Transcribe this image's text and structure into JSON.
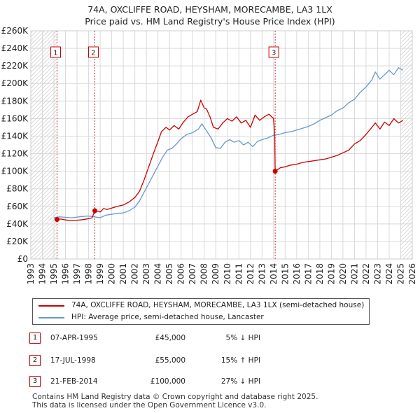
{
  "header": {
    "title_line1": "74A, OXCLIFFE ROAD, HEYSHAM, MORECAMBE, LA3 1LX",
    "title_line2": "Price paid vs. HM Land Registry's House Price Index (HPI)"
  },
  "colors": {
    "price_line": "#cc0000",
    "hpi_line": "#6699cc",
    "marker_border": "#cc0000",
    "vline": "#cc0000",
    "hatch": "#cccccc",
    "grid": "#d9d9d9"
  },
  "chart_data": {
    "type": "line",
    "title": "74A, OXCLIFFE ROAD, HEYSHAM, MORECAMBE, LA3 1LX",
    "subtitle": "Price paid vs. HM Land Registry's House Price Index (HPI)",
    "xlabel": "",
    "ylabel": "",
    "xlim": [
      1993,
      2026
    ],
    "ylim": [
      0,
      260000
    ],
    "grid": true,
    "y_ticks": [
      {
        "value": 0,
        "label": "£0"
      },
      {
        "value": 20000,
        "label": "£20K"
      },
      {
        "value": 40000,
        "label": "£40K"
      },
      {
        "value": 60000,
        "label": "£60K"
      },
      {
        "value": 80000,
        "label": "£80K"
      },
      {
        "value": 100000,
        "label": "£100K"
      },
      {
        "value": 120000,
        "label": "£120K"
      },
      {
        "value": 140000,
        "label": "£140K"
      },
      {
        "value": 160000,
        "label": "£160K"
      },
      {
        "value": 180000,
        "label": "£180K"
      },
      {
        "value": 200000,
        "label": "£200K"
      },
      {
        "value": 220000,
        "label": "£220K"
      },
      {
        "value": 240000,
        "label": "£240K"
      },
      {
        "value": 260000,
        "label": "£260K"
      }
    ],
    "x_ticks": [
      "1993",
      "1994",
      "1995",
      "1996",
      "1997",
      "1998",
      "1999",
      "2000",
      "2001",
      "2002",
      "2003",
      "2004",
      "2005",
      "2006",
      "2007",
      "2008",
      "2009",
      "2010",
      "2011",
      "2012",
      "2013",
      "2014",
      "2015",
      "2016",
      "2017",
      "2018",
      "2019",
      "2020",
      "2021",
      "2022",
      "2023",
      "2024",
      "2025",
      "2026"
    ],
    "hatch_regions": [
      {
        "from": 1993.0,
        "to": 1995.27
      },
      {
        "from": 2025.0,
        "to": 2026.0
      }
    ],
    "sales": [
      {
        "id": "1",
        "x": 1995.27,
        "y": 45000
      },
      {
        "id": "2",
        "x": 1998.54,
        "y": 55000
      },
      {
        "id": "3",
        "x": 2014.14,
        "y": 100000
      }
    ],
    "series": [
      {
        "name": "74A, OXCLIFFE ROAD, HEYSHAM, MORECAMBE, LA3 1LX (semi-detached house)",
        "color": "#cc0000",
        "points": [
          [
            1995.27,
            45000
          ],
          [
            1995.6,
            45500
          ],
          [
            1996.0,
            44500
          ],
          [
            1996.5,
            43800
          ],
          [
            1997.0,
            44200
          ],
          [
            1997.5,
            44800
          ],
          [
            1998.0,
            46000
          ],
          [
            1998.3,
            46800
          ],
          [
            1998.54,
            55000
          ],
          [
            1998.8,
            54500
          ],
          [
            1999.0,
            53500
          ],
          [
            1999.3,
            57500
          ],
          [
            1999.6,
            56500
          ],
          [
            2000.0,
            58000
          ],
          [
            2000.5,
            60000
          ],
          [
            2001.0,
            61500
          ],
          [
            2001.5,
            65000
          ],
          [
            2002.0,
            70000
          ],
          [
            2002.4,
            77000
          ],
          [
            2002.8,
            90000
          ],
          [
            2003.2,
            105000
          ],
          [
            2003.6,
            120000
          ],
          [
            2004.0,
            134000
          ],
          [
            2004.3,
            145000
          ],
          [
            2004.7,
            150000
          ],
          [
            2005.0,
            147000
          ],
          [
            2005.4,
            152000
          ],
          [
            2005.8,
            148000
          ],
          [
            2006.2,
            156000
          ],
          [
            2006.6,
            162000
          ],
          [
            2007.0,
            165000
          ],
          [
            2007.4,
            168000
          ],
          [
            2007.7,
            181000
          ],
          [
            2008.0,
            172000
          ],
          [
            2008.2,
            171000
          ],
          [
            2008.5,
            162000
          ],
          [
            2008.8,
            150000
          ],
          [
            2009.2,
            148000
          ],
          [
            2009.6,
            155000
          ],
          [
            2010.0,
            160000
          ],
          [
            2010.4,
            157000
          ],
          [
            2010.8,
            162000
          ],
          [
            2011.2,
            155000
          ],
          [
            2011.6,
            158000
          ],
          [
            2012.0,
            150000
          ],
          [
            2012.4,
            164000
          ],
          [
            2012.8,
            158000
          ],
          [
            2013.2,
            162000
          ],
          [
            2013.6,
            165000
          ],
          [
            2014.0,
            160000
          ],
          [
            2014.1,
            140000
          ],
          [
            2014.14,
            100000
          ],
          [
            2014.6,
            104000
          ],
          [
            2015.0,
            105000
          ],
          [
            2015.5,
            107000
          ],
          [
            2016.0,
            108000
          ],
          [
            2016.5,
            110000
          ],
          [
            2017.0,
            111000
          ],
          [
            2017.5,
            112000
          ],
          [
            2018.0,
            113000
          ],
          [
            2018.5,
            114000
          ],
          [
            2019.0,
            116000
          ],
          [
            2019.5,
            118000
          ],
          [
            2020.0,
            121000
          ],
          [
            2020.5,
            124000
          ],
          [
            2021.0,
            131000
          ],
          [
            2021.5,
            135000
          ],
          [
            2022.0,
            142000
          ],
          [
            2022.5,
            150000
          ],
          [
            2022.8,
            155000
          ],
          [
            2023.2,
            148000
          ],
          [
            2023.6,
            156000
          ],
          [
            2024.0,
            152000
          ],
          [
            2024.4,
            160000
          ],
          [
            2024.8,
            155000
          ],
          [
            2025.2,
            158000
          ]
        ]
      },
      {
        "name": "HPI: Average price, semi-detached house, Lancaster",
        "color": "#6699cc",
        "points": [
          [
            1995.0,
            47000
          ],
          [
            1995.5,
            48000
          ],
          [
            1996.0,
            47500
          ],
          [
            1996.5,
            47000
          ],
          [
            1997.0,
            47800
          ],
          [
            1997.5,
            48500
          ],
          [
            1998.0,
            49000
          ],
          [
            1998.5,
            48000
          ],
          [
            1999.0,
            47000
          ],
          [
            1999.5,
            50000
          ],
          [
            2000.0,
            51000
          ],
          [
            2000.5,
            52000
          ],
          [
            2001.0,
            52500
          ],
          [
            2001.5,
            55000
          ],
          [
            2002.0,
            59000
          ],
          [
            2002.4,
            66000
          ],
          [
            2002.8,
            76000
          ],
          [
            2003.2,
            86000
          ],
          [
            2003.6,
            96000
          ],
          [
            2004.0,
            106000
          ],
          [
            2004.4,
            116000
          ],
          [
            2004.8,
            124000
          ],
          [
            2005.2,
            126000
          ],
          [
            2005.6,
            131000
          ],
          [
            2006.0,
            137000
          ],
          [
            2006.5,
            142000
          ],
          [
            2007.0,
            144000
          ],
          [
            2007.5,
            148000
          ],
          [
            2007.8,
            154000
          ],
          [
            2008.2,
            146000
          ],
          [
            2008.6,
            138000
          ],
          [
            2009.0,
            127000
          ],
          [
            2009.4,
            126000
          ],
          [
            2009.8,
            133000
          ],
          [
            2010.2,
            136000
          ],
          [
            2010.6,
            133000
          ],
          [
            2011.0,
            135000
          ],
          [
            2011.4,
            130000
          ],
          [
            2011.8,
            133000
          ],
          [
            2012.2,
            128000
          ],
          [
            2012.6,
            134000
          ],
          [
            2013.0,
            136000
          ],
          [
            2013.5,
            138000
          ],
          [
            2014.0,
            141000
          ],
          [
            2014.5,
            142000
          ],
          [
            2015.0,
            144000
          ],
          [
            2015.5,
            145000
          ],
          [
            2016.0,
            147000
          ],
          [
            2016.5,
            149000
          ],
          [
            2017.0,
            151000
          ],
          [
            2017.5,
            154000
          ],
          [
            2018.0,
            158000
          ],
          [
            2018.5,
            161000
          ],
          [
            2019.0,
            164000
          ],
          [
            2019.5,
            169000
          ],
          [
            2020.0,
            172000
          ],
          [
            2020.5,
            178000
          ],
          [
            2021.0,
            182000
          ],
          [
            2021.5,
            190000
          ],
          [
            2022.0,
            196000
          ],
          [
            2022.5,
            204000
          ],
          [
            2022.8,
            213000
          ],
          [
            2023.2,
            205000
          ],
          [
            2023.6,
            210000
          ],
          [
            2024.0,
            215000
          ],
          [
            2024.4,
            210000
          ],
          [
            2024.8,
            218000
          ],
          [
            2025.2,
            215000
          ]
        ]
      }
    ]
  },
  "legend": {
    "items": [
      {
        "label": "74A, OXCLIFFE ROAD, HEYSHAM, MORECAMBE, LA3 1LX (semi-detached house)",
        "color": "#cc0000"
      },
      {
        "label": "HPI: Average price, semi-detached house, Lancaster",
        "color": "#6699cc"
      }
    ]
  },
  "transactions": [
    {
      "id": "1",
      "date": "07-APR-1995",
      "price": "£45,000",
      "hpi": "5% ↓ HPI"
    },
    {
      "id": "2",
      "date": "17-JUL-1998",
      "price": "£55,000",
      "hpi": "15% ↑ HPI"
    },
    {
      "id": "3",
      "date": "21-FEB-2014",
      "price": "£100,000",
      "hpi": "27% ↓ HPI"
    }
  ],
  "footer": {
    "line1": "Contains HM Land Registry data © Crown copyright and database right 2025.",
    "line2": "This data is licensed under the Open Government Licence v3.0."
  }
}
